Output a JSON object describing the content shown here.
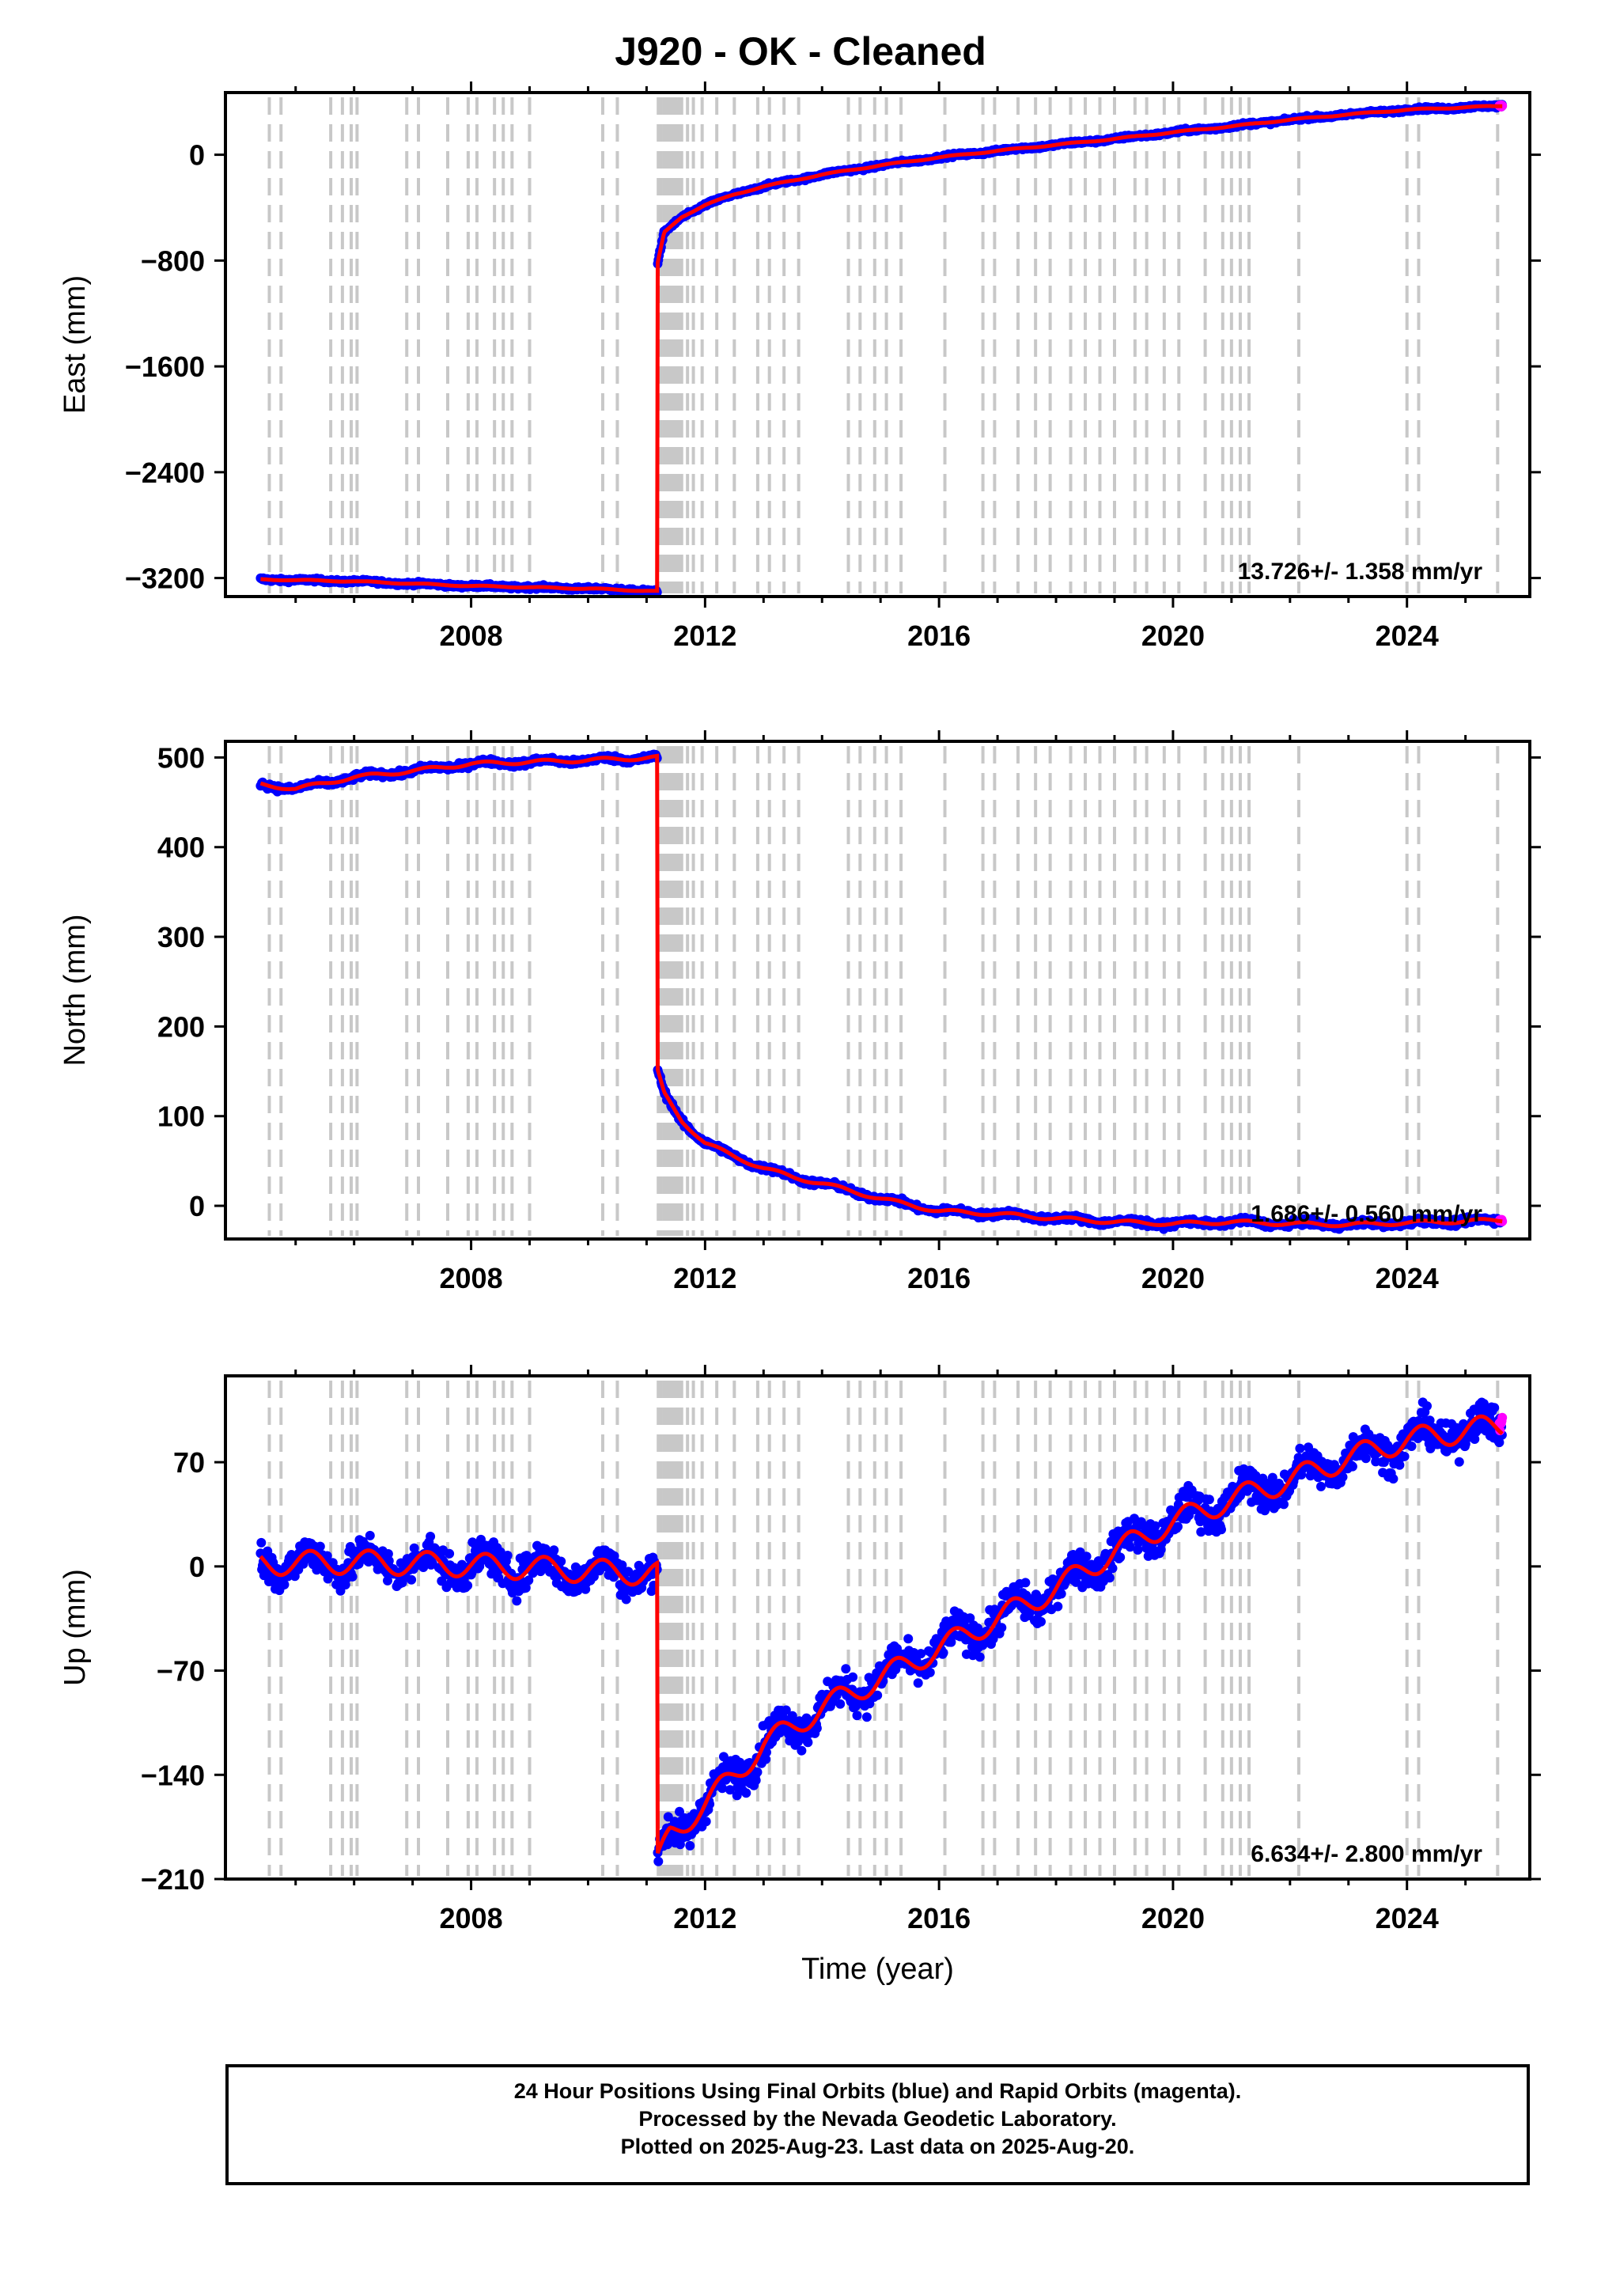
{
  "title": "J920  - OK - Cleaned",
  "footer": {
    "line1": "24 Hour Positions Using Final Orbits (blue) and Rapid Orbits (magenta).",
    "line2": "Processed by the Nevada Geodetic Laboratory.",
    "line3": "Plotted on 2025-Aug-23. Last data on 2025-Aug-20."
  },
  "colors": {
    "final_orbits": "#0000ff",
    "rapid_orbits": "#ff00ff",
    "model_fit": "#ff0000",
    "equipment_change_lines": "#c8c8c8"
  },
  "chart_data": [
    {
      "type": "scatter",
      "panel": "East",
      "ylabel": "East (mm)",
      "xlabel": "",
      "xlim": [
        2003.8,
        2026.1
      ],
      "ylim": [
        -3340,
        470
      ],
      "xticks": [
        2008,
        2012,
        2016,
        2020,
        2024
      ],
      "yticks": [
        0,
        -800,
        -1600,
        -2400,
        -3200
      ],
      "velocity_label": "13.726+/- 1.358 mm/yr",
      "event_year": 2011.19,
      "before": {
        "x": [
          2004.4,
          2006.0,
          2008.0,
          2010.0,
          2011.19
        ],
        "y": [
          -3210,
          -3225,
          -3260,
          -3280,
          -3300
        ]
      },
      "after": {
        "x": [
          2011.19,
          2011.3,
          2011.6,
          2012.0,
          2012.5,
          2013.0,
          2014.0,
          2015.0,
          2016.0,
          2017.0,
          2018.0,
          2019.0,
          2020.0,
          2021.0,
          2022.0,
          2023.0,
          2024.0,
          2025.63
        ],
        "y": [
          -820,
          -590,
          -470,
          -380,
          -300,
          -240,
          -150,
          -80,
          -20,
          30,
          75,
          120,
          170,
          215,
          265,
          305,
          340,
          370
        ]
      }
    },
    {
      "type": "scatter",
      "panel": "North",
      "ylabel": "North (mm)",
      "xlabel": "",
      "xlim": [
        2003.8,
        2026.1
      ],
      "ylim": [
        -37,
        518
      ],
      "xticks": [
        2008,
        2012,
        2016,
        2020,
        2024
      ],
      "yticks": [
        500,
        400,
        300,
        200,
        100,
        0
      ],
      "velocity_label": "1.686+/- 0.560 mm/yr",
      "event_year": 2011.19,
      "before": {
        "x": [
          2004.4,
          2005.0,
          2006.0,
          2007.0,
          2008.0,
          2009.0,
          2010.0,
          2011.19
        ],
        "y": [
          470,
          465,
          478,
          485,
          493,
          495,
          497,
          500
        ]
      },
      "after": {
        "x": [
          2011.19,
          2011.3,
          2011.6,
          2012.0,
          2012.5,
          2013.0,
          2013.5,
          2014.0,
          2015.0,
          2016.0,
          2017.0,
          2018.0,
          2019.0,
          2020.0,
          2021.0,
          2022.0,
          2023.0,
          2024.0,
          2025.63
        ],
        "y": [
          150,
          125,
          95,
          70,
          55,
          42,
          32,
          25,
          8,
          -6,
          -9,
          -14,
          -18,
          -20,
          -18,
          -20,
          -21,
          -19,
          -16
        ]
      }
    },
    {
      "type": "scatter",
      "panel": "Up",
      "ylabel": "Up (mm)",
      "xlabel": "Time (year)",
      "xlim": [
        2003.8,
        2026.1
      ],
      "ylim": [
        -210,
        128
      ],
      "xticks": [
        2008,
        2012,
        2016,
        2020,
        2024
      ],
      "yticks": [
        70,
        0,
        -70,
        -140,
        -210
      ],
      "velocity_label": "6.634+/- 2.800 mm/yr",
      "event_year": 2011.19,
      "before": {
        "x": [
          2004.4,
          2006.0,
          2008.0,
          2010.0,
          2011.19
        ],
        "y": [
          2,
          3,
          1,
          -3,
          -5
        ]
      },
      "after": {
        "x": [
          2011.19,
          2011.4,
          2012.0,
          2013.0,
          2014.0,
          2015.0,
          2016.0,
          2017.0,
          2018.0,
          2019.0,
          2020.0,
          2021.0,
          2022.0,
          2023.0,
          2024.0,
          2025.63
        ],
        "y": [
          -200,
          -180,
          -160,
          -120,
          -95,
          -75,
          -55,
          -35,
          -15,
          10,
          30,
          45,
          58,
          73,
          85,
          95
        ]
      },
      "seasonal_amplitude_mm": 8,
      "scatter_mm": 11
    }
  ],
  "equipment_change_years": [
    2004.55,
    2004.75,
    2005.6,
    2005.8,
    2005.95,
    2006.05,
    2006.9,
    2007.1,
    2007.6,
    2007.95,
    2008.1,
    2008.4,
    2008.55,
    2008.7,
    2009.0,
    2010.25,
    2010.5,
    2011.2,
    2011.25,
    2011.3,
    2011.35,
    2011.4,
    2011.45,
    2011.5,
    2011.55,
    2011.6,
    2011.7,
    2011.8,
    2011.95,
    2012.2,
    2012.5,
    2012.9,
    2013.1,
    2013.35,
    2013.6,
    2014.45,
    2014.65,
    2014.9,
    2015.1,
    2015.35,
    2016.1,
    2016.75,
    2016.95,
    2017.35,
    2017.65,
    2017.9,
    2018.25,
    2018.5,
    2018.75,
    2019.0,
    2019.35,
    2019.55,
    2019.85,
    2020.1,
    2020.55,
    2020.85,
    2021.0,
    2021.15,
    2021.3,
    2022.15,
    2024.0,
    2024.2,
    2025.55
  ]
}
